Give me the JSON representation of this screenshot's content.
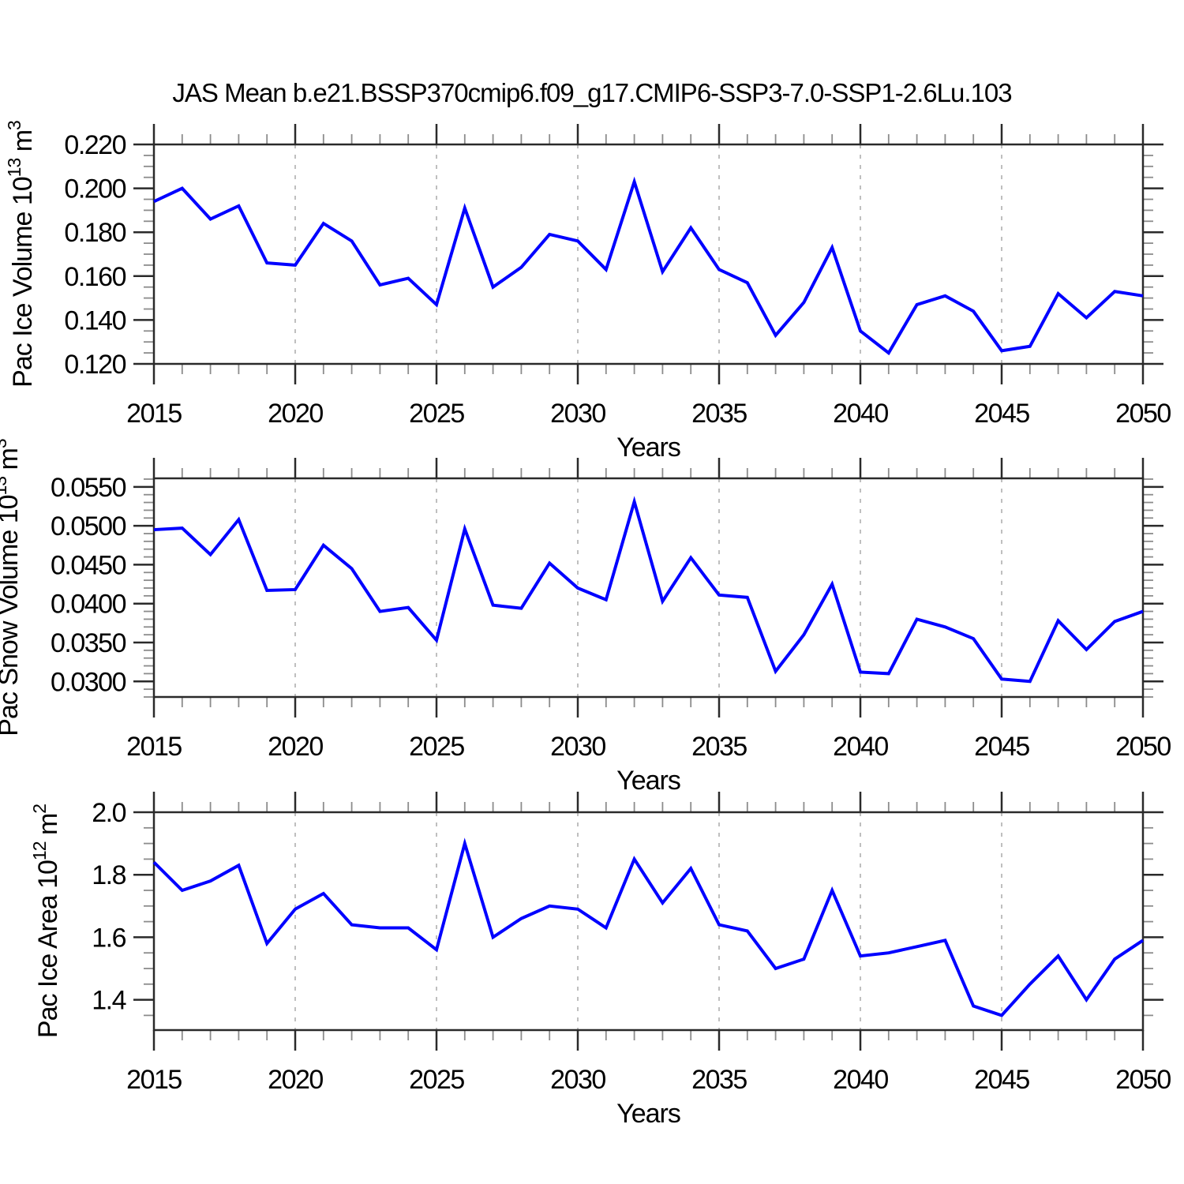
{
  "title": "JAS Mean b.e21.BSSP370cmip6.f09_g17.CMIP6-SSP3-7.0-SSP1-2.6Lu.103",
  "colors": {
    "line": "#0000ff",
    "axis": "#2a2a2a",
    "minor_tick": "#8c8c8c",
    "grid": "#aaaaaa",
    "text": "#000000",
    "background": "#ffffff"
  },
  "x_axis": {
    "label": "Years",
    "range": [
      2015,
      2050
    ],
    "tick_labels": [
      "2015",
      "2020",
      "2025",
      "2030",
      "2035",
      "2040",
      "2045",
      "2050"
    ],
    "minor_step_years": 1,
    "grid_years": [
      2020,
      2025,
      2030,
      2035,
      2040,
      2045
    ]
  },
  "chart_data": [
    {
      "type": "line",
      "title": "",
      "ylabel": "Pac Ice Volume 10^13 m^3",
      "ylabel_parts": [
        {
          "t": "Pac Ice Volume 10",
          "sup": false
        },
        {
          "t": "13",
          "sup": true
        },
        {
          "t": " m",
          "sup": false
        },
        {
          "t": "3",
          "sup": true
        }
      ],
      "xlabel": "Years",
      "x": [
        2015,
        2016,
        2017,
        2018,
        2019,
        2020,
        2021,
        2022,
        2023,
        2024,
        2025,
        2026,
        2027,
        2028,
        2029,
        2030,
        2031,
        2032,
        2033,
        2034,
        2035,
        2036,
        2037,
        2038,
        2039,
        2040,
        2041,
        2042,
        2043,
        2044,
        2045,
        2046,
        2047,
        2048,
        2049,
        2050
      ],
      "values": [
        0.194,
        0.2,
        0.186,
        0.192,
        0.166,
        0.165,
        0.184,
        0.176,
        0.156,
        0.159,
        0.147,
        0.191,
        0.155,
        0.164,
        0.179,
        0.176,
        0.163,
        0.203,
        0.162,
        0.182,
        0.163,
        0.157,
        0.133,
        0.148,
        0.173,
        0.135,
        0.125,
        0.147,
        0.151,
        0.144,
        0.126,
        0.128,
        0.152,
        0.141,
        0.153,
        0.151
      ],
      "ylim": [
        0.12,
        0.22
      ],
      "yticks": [
        0.12,
        0.14,
        0.16,
        0.18,
        0.2,
        0.22
      ],
      "ytick_labels": [
        "0.120",
        "0.140",
        "0.160",
        "0.180",
        "0.200",
        "0.220"
      ],
      "y_minor_step": 0.005,
      "grid": "vertical-dashed",
      "legend": "none"
    },
    {
      "type": "line",
      "title": "",
      "ylabel": "Pac Snow Volume 10^13 m^3",
      "ylabel_parts": [
        {
          "t": "Pac Snow Volume 10",
          "sup": false
        },
        {
          "t": "13",
          "sup": true
        },
        {
          "t": " m",
          "sup": false
        },
        {
          "t": "3",
          "sup": true
        }
      ],
      "xlabel": "Years",
      "x": [
        2015,
        2016,
        2017,
        2018,
        2019,
        2020,
        2021,
        2022,
        2023,
        2024,
        2025,
        2026,
        2027,
        2028,
        2029,
        2030,
        2031,
        2032,
        2033,
        2034,
        2035,
        2036,
        2037,
        2038,
        2039,
        2040,
        2041,
        2042,
        2043,
        2044,
        2045,
        2046,
        2047,
        2048,
        2049,
        2050
      ],
      "values": [
        0.0495,
        0.0497,
        0.0463,
        0.0508,
        0.0417,
        0.0418,
        0.0475,
        0.0445,
        0.039,
        0.0395,
        0.0353,
        0.0496,
        0.0398,
        0.0394,
        0.0452,
        0.042,
        0.0405,
        0.0531,
        0.0403,
        0.0459,
        0.0411,
        0.0408,
        0.0313,
        0.036,
        0.0425,
        0.0312,
        0.031,
        0.038,
        0.037,
        0.0355,
        0.0303,
        0.03,
        0.0378,
        0.0341,
        0.0377,
        0.039
      ],
      "ylim": [
        0.028,
        0.0561
      ],
      "yticks": [
        0.03,
        0.035,
        0.04,
        0.045,
        0.05,
        0.055
      ],
      "ytick_labels": [
        "0.0300",
        "0.0350",
        "0.0400",
        "0.0450",
        "0.0500",
        "0.0550"
      ],
      "y_minor_step": 0.001,
      "grid": "vertical-dashed",
      "legend": "none"
    },
    {
      "type": "line",
      "title": "",
      "ylabel": "Pac Ice Area 10^12 m^2",
      "ylabel_parts": [
        {
          "t": "Pac Ice Area 10",
          "sup": false
        },
        {
          "t": "12",
          "sup": true
        },
        {
          "t": " m",
          "sup": false
        },
        {
          "t": "2",
          "sup": true
        }
      ],
      "xlabel": "Years",
      "x": [
        2015,
        2016,
        2017,
        2018,
        2019,
        2020,
        2021,
        2022,
        2023,
        2024,
        2025,
        2026,
        2027,
        2028,
        2029,
        2030,
        2031,
        2032,
        2033,
        2034,
        2035,
        2036,
        2037,
        2038,
        2039,
        2040,
        2041,
        2042,
        2043,
        2044,
        2045,
        2046,
        2047,
        2048,
        2049,
        2050
      ],
      "values": [
        1.84,
        1.75,
        1.78,
        1.83,
        1.58,
        1.69,
        1.74,
        1.64,
        1.63,
        1.63,
        1.56,
        1.9,
        1.6,
        1.66,
        1.7,
        1.69,
        1.63,
        1.85,
        1.71,
        1.82,
        1.64,
        1.62,
        1.5,
        1.53,
        1.75,
        1.54,
        1.55,
        1.57,
        1.59,
        1.38,
        1.35,
        1.45,
        1.54,
        1.4,
        1.53,
        1.59
      ],
      "ylim": [
        1.303,
        2.0
      ],
      "yticks": [
        1.4,
        1.6,
        1.8,
        2.0
      ],
      "ytick_labels": [
        "1.4",
        "1.6",
        "1.8",
        "2.0"
      ],
      "y_minor_step": 0.05,
      "grid": "vertical-dashed",
      "legend": "none"
    }
  ]
}
